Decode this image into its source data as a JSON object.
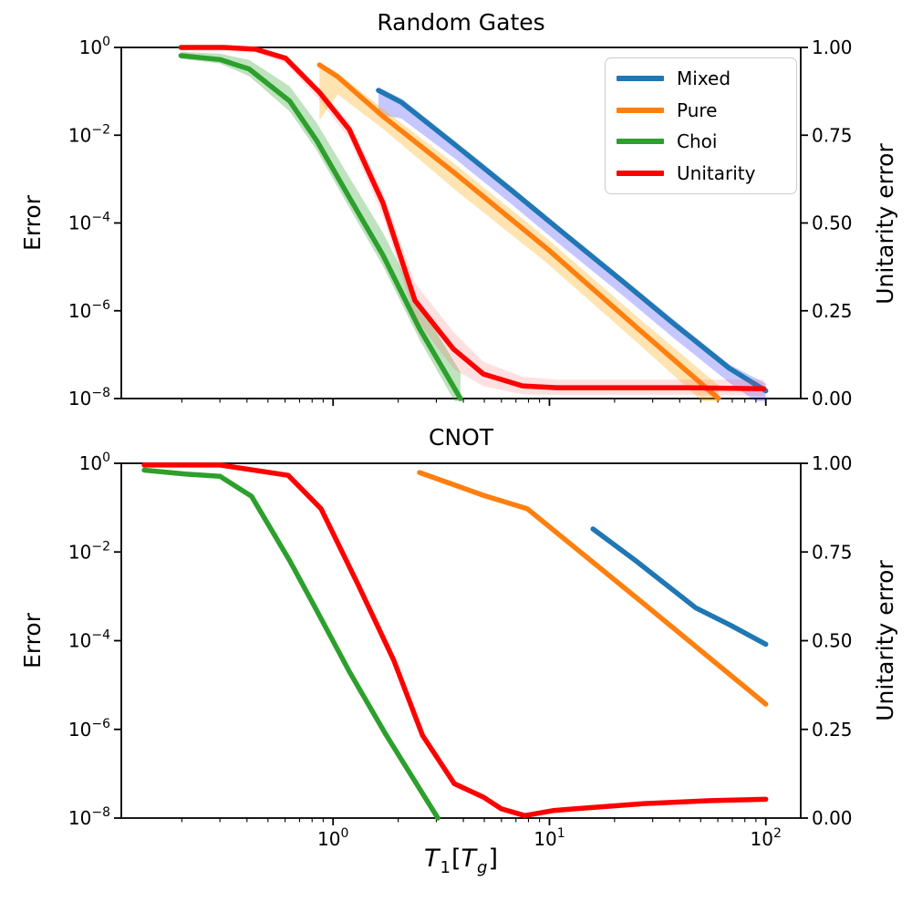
{
  "axes": {
    "x": {
      "scale": "log",
      "range": [
        0.105,
        145
      ],
      "label_parts": {
        "t1": "T",
        "sub1": "1",
        "open": "[",
        "t2": "T",
        "sub2": "g",
        "close": "]"
      },
      "major_ticks": [
        {
          "value": 1,
          "base": "10",
          "exp": "0"
        },
        {
          "value": 10,
          "base": "10",
          "exp": "1"
        },
        {
          "value": 100,
          "base": "10",
          "exp": "2"
        }
      ],
      "minor_ticks": [
        0.2,
        0.3,
        0.4,
        0.5,
        0.6,
        0.7,
        0.8,
        0.9,
        2,
        3,
        4,
        5,
        6,
        7,
        8,
        9,
        20,
        30,
        40,
        50,
        60,
        70,
        80,
        90
      ]
    },
    "y_left": {
      "label": "Error",
      "scale": "log",
      "range": [
        1e-08,
        1
      ],
      "ticks": [
        {
          "value": 1,
          "base": "10",
          "exp": "0"
        },
        {
          "value": 0.01,
          "base": "10",
          "exp": "−2"
        },
        {
          "value": 0.0001,
          "base": "10",
          "exp": "−4"
        },
        {
          "value": 1e-06,
          "base": "10",
          "exp": "−6"
        },
        {
          "value": 1e-08,
          "base": "10",
          "exp": "−8"
        }
      ]
    },
    "y_right": {
      "label": "Unitarity error",
      "scale": "linear",
      "range": [
        0,
        1
      ],
      "ticks": [
        {
          "value": 1,
          "label": "1.00"
        },
        {
          "value": 0.75,
          "label": "0.75"
        },
        {
          "value": 0.5,
          "label": "0.50"
        },
        {
          "value": 0.25,
          "label": "0.25"
        },
        {
          "value": 0,
          "label": "0.00"
        }
      ]
    }
  },
  "legend": {
    "items": [
      {
        "label": "Mixed",
        "color": "#1f77b4"
      },
      {
        "label": "Pure",
        "color": "#ff7f0e"
      },
      {
        "label": "Choi",
        "color": "#2ca02c"
      },
      {
        "label": "Unitarity",
        "color": "#ff0000"
      }
    ]
  },
  "chart_data": [
    {
      "type": "line",
      "title": "Random Gates",
      "x_scale": "log",
      "series": [
        {
          "name": "Mixed",
          "axis": "left",
          "color": "#1f77b4",
          "band_color": "#0000ff",
          "band_opacity": 0.22,
          "x": [
            1.62,
            2.07,
            3.7,
            6.6,
            11.8,
            21.2,
            37.9,
            67.8,
            100
          ],
          "y": [
            0.105,
            0.056,
            0.0058,
            0.00058,
            5.5e-05,
            5.2e-06,
            4.9e-07,
            4.9e-08,
            1.5e-08
          ],
          "band_upper": [
            0.125,
            0.068,
            0.007,
            0.0007,
            6.6e-05,
            6.3e-06,
            6e-07,
            6e-08,
            2.2e-08
          ],
          "band_lower": [
            0.03,
            0.024,
            0.0028,
            0.00028,
            2.6e-05,
            2.5e-06,
            2.3e-07,
            2.3e-08,
            6e-09
          ]
        },
        {
          "name": "Pure",
          "axis": "left",
          "color": "#ff7f0e",
          "band_color": "#ffa500",
          "band_opacity": 0.3,
          "x": [
            0.865,
            1.05,
            1.7,
            3.7,
            9.75,
            25.7,
            60.4
          ],
          "y": [
            0.4,
            0.215,
            0.027,
            0.0013,
            2.6e-05,
            3.9e-07,
            1e-08
          ],
          "band_upper": [
            0.46,
            0.26,
            0.04,
            0.0021,
            4.4e-05,
            7e-07,
            2e-08
          ],
          "band_lower": [
            0.022,
            0.085,
            0.014,
            0.00055,
            1.2e-05,
            1.8e-07,
            4e-09
          ]
        },
        {
          "name": "Choi",
          "axis": "left",
          "color": "#2ca02c",
          "band_color": "#2ca02c",
          "band_opacity": 0.3,
          "x": [
            0.198,
            0.3,
            0.41,
            0.63,
            0.84,
            1.19,
            1.7,
            2.51,
            3.88
          ],
          "y": [
            0.65,
            0.53,
            0.32,
            0.06,
            0.0075,
            0.00038,
            1.85e-05,
            3.9e-07,
            1e-08
          ],
          "band_upper": [
            0.8,
            0.72,
            0.52,
            0.13,
            0.019,
            0.0011,
            6e-05,
            1.4e-06,
            4e-08
          ],
          "band_lower": [
            0.55,
            0.43,
            0.22,
            0.035,
            0.0045,
            0.00022,
            1.05e-05,
            2.2e-07,
            5e-09
          ]
        },
        {
          "name": "Unitarity",
          "axis": "right",
          "color": "#ff0000",
          "band_color": "#ff5555",
          "band_opacity": 0.18,
          "x": [
            0.198,
            0.312,
            0.438,
            0.604,
            0.865,
            1.19,
            1.7,
            2.39,
            3.6,
            4.95,
            7.5,
            10.8,
            15.9,
            41.7,
            98
          ],
          "y": [
            1.0,
            1.0,
            0.995,
            0.969,
            0.872,
            0.766,
            0.557,
            0.279,
            0.141,
            0.07,
            0.036,
            0.031,
            0.031,
            0.031,
            0.028
          ],
          "band_upper": [
            1.0,
            1.0,
            1.0,
            0.975,
            0.882,
            0.786,
            0.587,
            0.329,
            0.19,
            0.105,
            0.062,
            0.054,
            0.054,
            0.054,
            0.054
          ],
          "band_lower": [
            0.99,
            0.99,
            0.985,
            0.955,
            0.85,
            0.74,
            0.52,
            0.23,
            0.085,
            0.035,
            0.012,
            0.01,
            0.01,
            0.01,
            0.008
          ]
        }
      ]
    },
    {
      "type": "line",
      "title": "CNOT",
      "x_scale": "log",
      "series": [
        {
          "name": "Mixed",
          "axis": "left",
          "color": "#1f77b4",
          "x": [
            15.9,
            25.0,
            47.4,
            67.9,
            100
          ],
          "y": [
            0.033,
            0.0064,
            0.00055,
            0.00023,
            8.3e-05
          ]
        },
        {
          "name": "Pure",
          "axis": "left",
          "color": "#ff7f0e",
          "x": [
            2.51,
            4.95,
            7.9,
            27.5,
            100
          ],
          "y": [
            0.62,
            0.19,
            0.094,
            0.00066,
            3.7e-06
          ]
        },
        {
          "name": "Choi",
          "axis": "left",
          "color": "#2ca02c",
          "x": [
            0.134,
            0.21,
            0.3,
            0.42,
            0.63,
            0.84,
            1.19,
            1.76,
            3.05
          ],
          "y": [
            0.7,
            0.57,
            0.51,
            0.18,
            0.0064,
            0.00048,
            2e-05,
            7.4e-07,
            1e-08
          ]
        },
        {
          "name": "Unitarity",
          "axis": "right",
          "color": "#ff0000",
          "x": [
            0.134,
            0.3,
            0.62,
            0.88,
            1.31,
            1.91,
            2.59,
            3.63,
            4.95,
            6.0,
            7.7,
            10.4,
            14.4,
            27.5,
            55.8,
            100
          ],
          "y": [
            0.995,
            0.995,
            0.966,
            0.872,
            0.656,
            0.444,
            0.233,
            0.097,
            0.059,
            0.026,
            0.007,
            0.021,
            0.028,
            0.041,
            0.049,
            0.053
          ]
        }
      ]
    }
  ]
}
